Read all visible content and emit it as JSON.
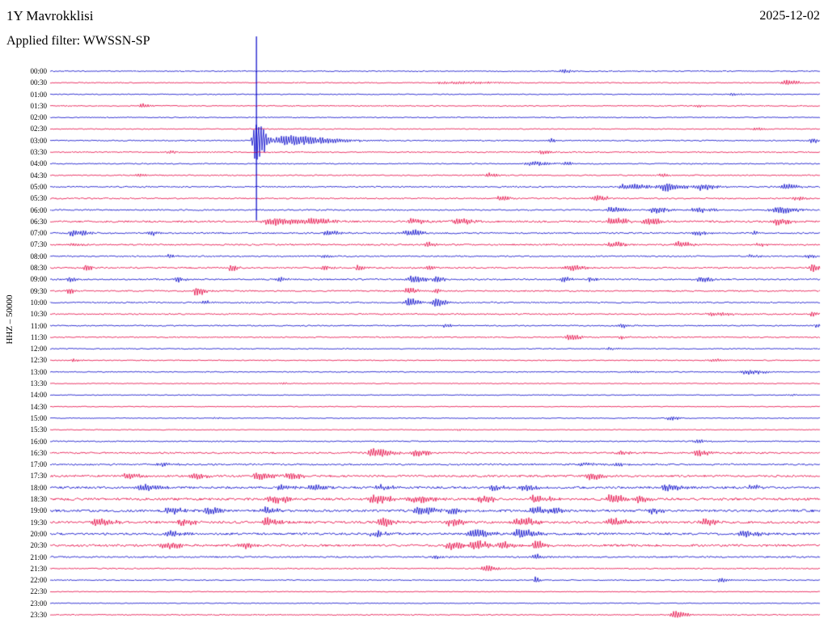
{
  "header": {
    "station": "1Y Mavrokklisi",
    "date": "2025-12-02",
    "filter": "Applied filter: WWSSN-SP"
  },
  "axis": {
    "stream_label": "HHZ – 50000"
  },
  "chart_data": {
    "type": "helicorder",
    "station": "1Y Mavrokklisi",
    "date": "2025-12-02",
    "filter": "WWSSN-SP",
    "stream_scale": "HHZ – 50000",
    "row_interval_minutes": 30,
    "rows": 48,
    "legend_position": "none",
    "grid": false,
    "colors": {
      "even": "#0000c8",
      "odd": "#e50040"
    },
    "row_labels": [
      "00:00",
      "00:30",
      "01:00",
      "01:30",
      "02:00",
      "02:30",
      "03:00",
      "03:30",
      "04:00",
      "04:30",
      "05:00",
      "05:30",
      "06:00",
      "06:30",
      "07:00",
      "07:30",
      "08:00",
      "08:30",
      "09:00",
      "09:30",
      "10:00",
      "10:30",
      "11:00",
      "11:30",
      "12:00",
      "12:30",
      "13:00",
      "13:30",
      "14:00",
      "14:30",
      "15:00",
      "15:30",
      "16:00",
      "16:30",
      "17:00",
      "17:30",
      "18:00",
      "18:30",
      "19:00",
      "19:30",
      "20:00",
      "20:30",
      "21:00",
      "21:30",
      "22:00",
      "22:30",
      "23:00",
      "23:30"
    ],
    "row_noise": [
      0.6,
      0.6,
      0.6,
      0.6,
      0.6,
      0.6,
      0.7,
      0.7,
      0.7,
      0.7,
      0.8,
      0.8,
      0.8,
      1.1,
      0.9,
      0.9,
      0.8,
      0.9,
      0.9,
      0.8,
      0.8,
      0.8,
      0.7,
      0.7,
      0.6,
      0.6,
      0.6,
      0.5,
      0.5,
      0.5,
      0.5,
      0.5,
      0.7,
      1.0,
      1.0,
      1.2,
      1.3,
      1.4,
      1.4,
      1.4,
      1.3,
      1.3,
      0.9,
      0.7,
      0.6,
      0.5,
      0.5,
      0.6
    ],
    "event_fields": [
      "row_index",
      "x_fraction_of_row",
      "amplitude_px",
      "width_px"
    ],
    "main_event": {
      "row_label": "03:00",
      "x_fraction": 0.268,
      "clipped": true
    },
    "spike": {
      "x": 0.268,
      "top_offset_rows": -3,
      "bottom_row": 12.9
    },
    "events": [
      [
        0,
        0.665,
        3,
        6
      ],
      [
        1,
        0.52,
        2,
        25
      ],
      [
        1,
        0.955,
        3.5,
        8
      ],
      [
        2,
        0.885,
        2,
        5
      ],
      [
        3,
        0.118,
        3,
        5
      ],
      [
        3,
        0.84,
        1.5,
        8
      ],
      [
        5,
        0.916,
        2.5,
        5
      ],
      [
        6,
        0.268,
        30,
        6
      ],
      [
        6,
        0.305,
        7,
        28
      ],
      [
        6,
        0.65,
        2.5,
        6
      ],
      [
        6,
        0.99,
        3.5,
        4
      ],
      [
        7,
        0.155,
        2,
        5
      ],
      [
        7,
        0.638,
        2.5,
        7
      ],
      [
        8,
        0.625,
        3.5,
        10
      ],
      [
        8,
        0.67,
        2.5,
        5
      ],
      [
        9,
        0.115,
        2.5,
        4
      ],
      [
        9,
        0.57,
        3,
        5
      ],
      [
        9,
        0.795,
        3.5,
        4
      ],
      [
        10,
        0.75,
        4,
        15
      ],
      [
        10,
        0.8,
        5,
        12
      ],
      [
        10,
        0.845,
        4.5,
        10
      ],
      [
        10,
        0.955,
        4.5,
        8
      ],
      [
        11,
        0.585,
        4,
        6
      ],
      [
        11,
        0.71,
        4,
        8
      ],
      [
        11,
        0.97,
        2.5,
        6
      ],
      [
        12,
        0.73,
        4,
        10
      ],
      [
        12,
        0.785,
        4.5,
        8
      ],
      [
        12,
        0.84,
        3.5,
        10
      ],
      [
        12,
        0.945,
        4.5,
        12
      ],
      [
        13,
        0.29,
        5,
        18
      ],
      [
        13,
        0.34,
        4.5,
        12
      ],
      [
        13,
        0.47,
        4,
        8
      ],
      [
        13,
        0.53,
        4.5,
        10
      ],
      [
        13,
        0.73,
        4.5,
        10
      ],
      [
        13,
        0.775,
        5,
        8
      ],
      [
        13,
        0.945,
        4.5,
        8
      ],
      [
        14,
        0.03,
        4.5,
        8
      ],
      [
        14,
        0.13,
        3.5,
        5
      ],
      [
        14,
        0.36,
        4,
        8
      ],
      [
        14,
        0.465,
        4.5,
        10
      ],
      [
        14,
        0.84,
        3.5,
        6
      ],
      [
        14,
        0.915,
        2.5,
        5
      ],
      [
        15,
        0.03,
        3,
        5
      ],
      [
        15,
        0.49,
        3.5,
        5
      ],
      [
        15,
        0.73,
        4,
        8
      ],
      [
        15,
        0.815,
        4,
        8
      ],
      [
        15,
        0.92,
        2.5,
        5
      ],
      [
        16,
        0.155,
        3,
        4
      ],
      [
        16,
        0.355,
        2.5,
        4
      ],
      [
        16,
        0.91,
        2.5,
        5
      ],
      [
        16,
        0.985,
        3,
        4
      ],
      [
        17,
        0.045,
        5,
        4
      ],
      [
        17,
        0.235,
        5,
        4
      ],
      [
        17,
        0.355,
        4,
        4
      ],
      [
        17,
        0.4,
        3.5,
        4
      ],
      [
        17,
        0.49,
        3.5,
        4
      ],
      [
        17,
        0.675,
        4.5,
        8
      ],
      [
        17,
        0.99,
        5,
        4
      ],
      [
        18,
        0.025,
        3.5,
        4
      ],
      [
        18,
        0.165,
        4.5,
        4
      ],
      [
        18,
        0.297,
        4,
        4
      ],
      [
        18,
        0.47,
        5.5,
        8
      ],
      [
        18,
        0.5,
        5,
        5
      ],
      [
        18,
        0.665,
        4,
        5
      ],
      [
        18,
        0.7,
        3.5,
        4
      ],
      [
        18,
        0.845,
        4.5,
        6
      ],
      [
        19,
        0.024,
        4,
        4
      ],
      [
        19,
        0.19,
        6,
        5
      ],
      [
        19,
        0.465,
        4.5,
        5
      ],
      [
        19,
        0.5,
        3.5,
        4
      ],
      [
        20,
        0.465,
        7,
        6
      ],
      [
        20,
        0.5,
        6,
        6
      ],
      [
        20,
        0.2,
        2.5,
        5
      ],
      [
        21,
        0.86,
        3,
        12
      ],
      [
        21,
        0.99,
        3,
        4
      ],
      [
        22,
        0.512,
        2.5,
        5
      ],
      [
        22,
        0.74,
        3,
        5
      ],
      [
        22,
        0.995,
        3,
        4
      ],
      [
        23,
        0.675,
        5,
        6
      ],
      [
        23,
        0.74,
        2.5,
        4
      ],
      [
        24,
        0.728,
        2,
        5
      ],
      [
        25,
        0.03,
        2,
        4
      ],
      [
        25,
        0.86,
        2.5,
        8
      ],
      [
        26,
        0.905,
        3.5,
        10
      ],
      [
        26,
        0.755,
        2,
        4
      ],
      [
        27,
        0.3,
        1.5,
        4
      ],
      [
        28,
        0.96,
        1.5,
        4
      ],
      [
        30,
        0.215,
        1.5,
        4
      ],
      [
        30,
        0.805,
        3,
        6
      ],
      [
        31,
        0.53,
        1.5,
        4
      ],
      [
        32,
        0.84,
        2.5,
        8
      ],
      [
        33,
        0.42,
        5.5,
        12
      ],
      [
        33,
        0.475,
        4.5,
        8
      ],
      [
        33,
        0.74,
        3,
        6
      ],
      [
        33,
        0.84,
        4.5,
        8
      ],
      [
        34,
        0.145,
        3.5,
        6
      ],
      [
        34,
        0.69,
        3,
        6
      ],
      [
        34,
        0.735,
        3,
        5
      ],
      [
        35,
        0.1,
        4.5,
        8
      ],
      [
        35,
        0.185,
        5,
        8
      ],
      [
        35,
        0.27,
        5.5,
        10
      ],
      [
        35,
        0.31,
        5,
        8
      ],
      [
        35,
        0.7,
        4.5,
        8
      ],
      [
        36,
        0.12,
        4.5,
        10
      ],
      [
        36,
        0.3,
        4,
        8
      ],
      [
        36,
        0.34,
        4.5,
        8
      ],
      [
        36,
        0.425,
        4,
        8
      ],
      [
        36,
        0.575,
        4,
        8
      ],
      [
        36,
        0.615,
        4.5,
        8
      ],
      [
        36,
        0.8,
        5,
        8
      ],
      [
        36,
        0.91,
        3.5,
        6
      ],
      [
        37,
        0.29,
        5.5,
        10
      ],
      [
        37,
        0.42,
        6,
        10
      ],
      [
        37,
        0.475,
        5.5,
        10
      ],
      [
        37,
        0.56,
        5,
        8
      ],
      [
        37,
        0.63,
        5.5,
        8
      ],
      [
        37,
        0.73,
        6,
        10
      ],
      [
        37,
        0.76,
        5,
        8
      ],
      [
        38,
        0.155,
        5,
        8
      ],
      [
        38,
        0.205,
        5,
        8
      ],
      [
        38,
        0.28,
        4.5,
        8
      ],
      [
        38,
        0.48,
        6,
        10
      ],
      [
        38,
        0.52,
        5,
        8
      ],
      [
        38,
        0.63,
        6,
        8
      ],
      [
        38,
        0.655,
        5,
        6
      ],
      [
        38,
        0.78,
        5,
        6
      ],
      [
        39,
        0.06,
        5.5,
        10
      ],
      [
        39,
        0.17,
        5,
        8
      ],
      [
        39,
        0.28,
        5.5,
        8
      ],
      [
        39,
        0.43,
        6,
        8
      ],
      [
        39,
        0.52,
        5,
        8
      ],
      [
        39,
        0.61,
        6,
        10
      ],
      [
        39,
        0.73,
        5.5,
        8
      ],
      [
        39,
        0.85,
        4.5,
        8
      ],
      [
        40,
        0.155,
        4.5,
        8
      ],
      [
        40,
        0.42,
        4,
        8
      ],
      [
        40,
        0.55,
        6.5,
        10
      ],
      [
        40,
        0.61,
        6,
        10
      ],
      [
        40,
        0.9,
        4.5,
        10
      ],
      [
        41,
        0.15,
        5,
        8
      ],
      [
        41,
        0.25,
        4,
        8
      ],
      [
        41,
        0.52,
        6,
        8
      ],
      [
        41,
        0.55,
        6.5,
        10
      ],
      [
        41,
        0.585,
        6,
        8
      ],
      [
        41,
        0.63,
        7,
        6
      ],
      [
        42,
        0.5,
        3,
        6
      ],
      [
        42,
        0.63,
        4,
        5
      ],
      [
        43,
        0.565,
        4,
        8
      ],
      [
        44,
        0.63,
        5,
        3
      ],
      [
        44,
        0.87,
        3,
        5
      ],
      [
        47,
        0.81,
        5,
        8
      ]
    ]
  }
}
